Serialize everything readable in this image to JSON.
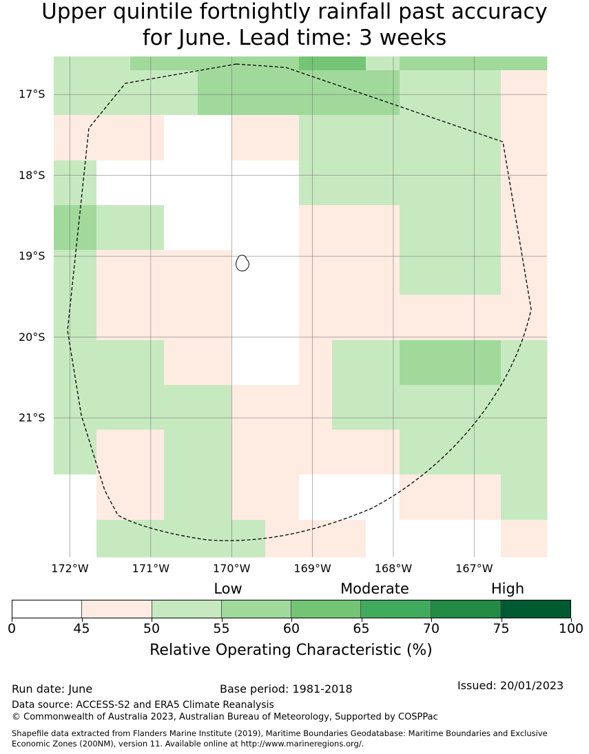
{
  "title_line1": "Upper quintile fortnightly rainfall past accuracy",
  "title_line2": "for June. Lead time: 3 weeks",
  "colors": {
    "0": "#ffffff",
    "1": "#feebe2",
    "2": "#c7e9c0",
    "3": "#a1d99b",
    "4": "#74c476",
    "5": "#41ab5d",
    "6": "#238b45",
    "7": "#005a32"
  },
  "map": {
    "lon_range": [
      -172.2,
      -166.1
    ],
    "lat_range": [
      -16.53,
      -22.72
    ],
    "x_ticks": [
      -172,
      -171,
      -170,
      -169,
      -168,
      -167
    ],
    "x_tick_labels": [
      "172°W",
      "171°W",
      "170°W",
      "169°W",
      "168°W",
      "167°W"
    ],
    "y_ticks": [
      -17,
      -18,
      -19,
      -20,
      -21
    ],
    "y_tick_labels": [
      "17°S",
      "18°S",
      "19°S",
      "20°S",
      "21°S"
    ],
    "grid_rows": [
      [
        2,
        2,
        3,
        3,
        3,
        3,
        3,
        4,
        4,
        2,
        3,
        3,
        3
      ],
      [
        2,
        2,
        2,
        2,
        3,
        3,
        3,
        3,
        3,
        3,
        2,
        2,
        1
      ],
      [
        1,
        1,
        1,
        0,
        0,
        1,
        1,
        2,
        2,
        2,
        2,
        2,
        1
      ],
      [
        2,
        0,
        0,
        0,
        0,
        0,
        0,
        2,
        2,
        2,
        2,
        2,
        1
      ],
      [
        3,
        2,
        2,
        0,
        0,
        0,
        0,
        1,
        1,
        1,
        2,
        2,
        1
      ],
      [
        2,
        1,
        1,
        1,
        1,
        0,
        0,
        1,
        1,
        1,
        2,
        2,
        1
      ],
      [
        2,
        1,
        1,
        1,
        1,
        0,
        0,
        1,
        1,
        1,
        1,
        1,
        1
      ],
      [
        2,
        2,
        2,
        1,
        1,
        0,
        0,
        1,
        2,
        2,
        3,
        3,
        2
      ],
      [
        2,
        2,
        2,
        2,
        2,
        1,
        1,
        1,
        2,
        2,
        2,
        2,
        2
      ],
      [
        2,
        1,
        1,
        2,
        2,
        1,
        1,
        1,
        1,
        1,
        2,
        2,
        2
      ],
      [
        0,
        1,
        1,
        2,
        2,
        1,
        1,
        0,
        0,
        0,
        1,
        1,
        2
      ],
      [
        0,
        2,
        2,
        2,
        2,
        2,
        1,
        1,
        1,
        0,
        0,
        0,
        1
      ]
    ]
  },
  "colorbar": {
    "ticks": [
      "0",
      "45",
      "50",
      "55",
      "60",
      "65",
      "70",
      "75",
      "100"
    ],
    "categories": [
      "Low",
      "Moderate",
      "High"
    ],
    "label": "Relative Operating Characteristic (%)"
  },
  "footer": {
    "run_date": "Run date: June",
    "base_period": "Base period: 1981-2018",
    "issued": "Issued: 20/01/2023",
    "data_source": "Data source: ACCESS-S2 and ERA5 Climate Reanalysis",
    "copyright": "© Commonwealth of Australia 2023, Australian Bureau of Meteorology, Supported by COSPPac",
    "shapefile": "Shapefile data extracted from Flanders Marine Institute (2019), Maritime Boundaries Geodatabase: Maritime Boundaries and Exclusive Economic Zones (200NM), version 11. Available online at http://www.marineregions.org/."
  }
}
